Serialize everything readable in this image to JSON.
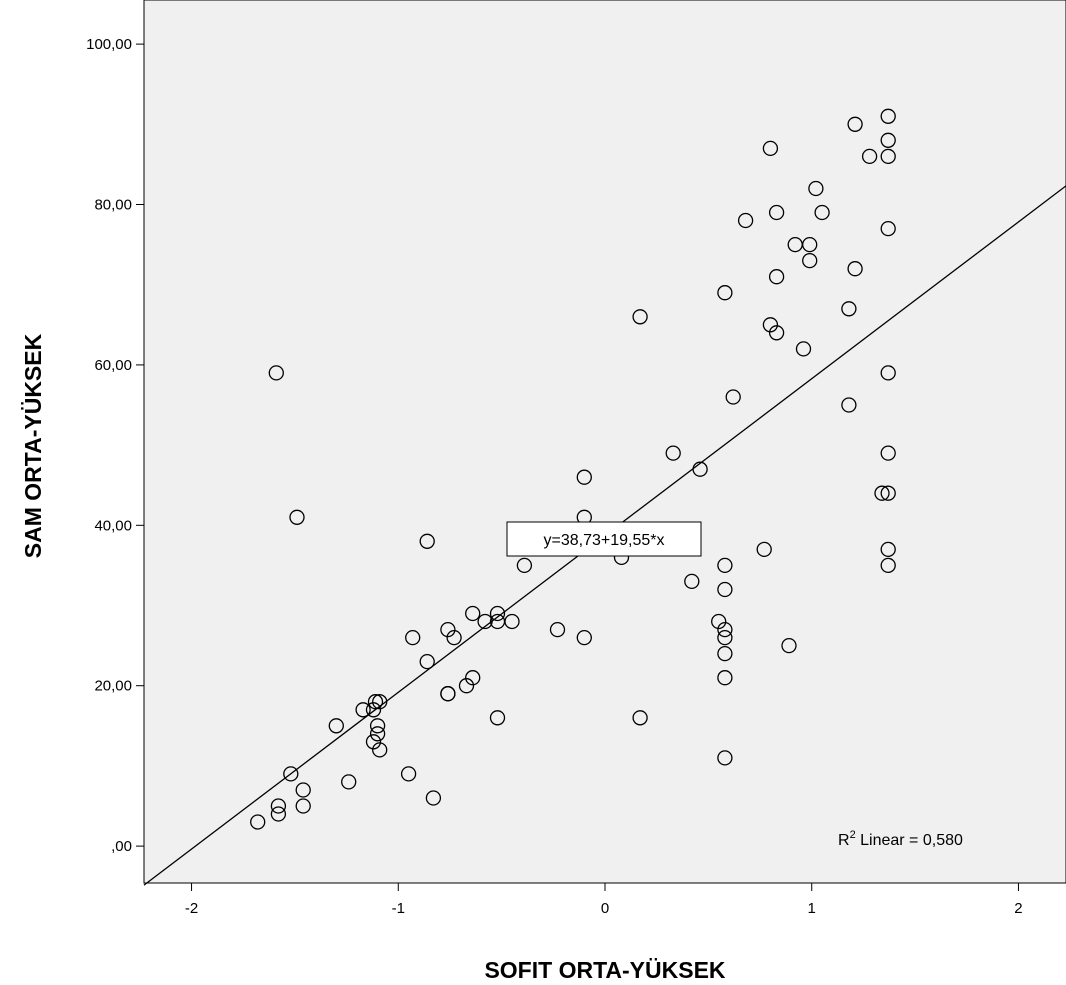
{
  "chart_data": {
    "type": "scatter",
    "xlabel": "SOFIT ORTA-YÜKSEK",
    "ylabel": "SAM ORTA-YÜKSEK",
    "xlim": [
      -2.23,
      2.23
    ],
    "ylim": [
      -4.6,
      105.5
    ],
    "x_ticks": [
      -2,
      -1,
      0,
      1,
      2
    ],
    "x_tick_labels": [
      "-2",
      "-1",
      "0",
      "1",
      "2"
    ],
    "y_ticks": [
      0,
      20,
      40,
      60,
      80,
      100
    ],
    "y_tick_labels": [
      ",00",
      "20,00",
      "40,00",
      "60,00",
      "80,00",
      "100,00"
    ],
    "fit_line": {
      "intercept": 38.73,
      "slope": 19.55,
      "label": "y=38,73+19,55*x"
    },
    "r2_label": {
      "prefix": "R",
      "superscript": "2",
      "suffix": " Linear = 0,580"
    },
    "colors": {
      "plot_bg": "#f0f0f0",
      "marker": "#000000",
      "line": "#000000"
    },
    "points": [
      {
        "x": -1.68,
        "y": 3
      },
      {
        "x": -1.58,
        "y": 5
      },
      {
        "x": -1.58,
        "y": 4
      },
      {
        "x": -1.52,
        "y": 9
      },
      {
        "x": -1.46,
        "y": 7
      },
      {
        "x": -1.46,
        "y": 5
      },
      {
        "x": -1.24,
        "y": 8
      },
      {
        "x": -1.3,
        "y": 15
      },
      {
        "x": -1.17,
        "y": 17
      },
      {
        "x": -1.11,
        "y": 18
      },
      {
        "x": -1.12,
        "y": 17
      },
      {
        "x": -1.09,
        "y": 18
      },
      {
        "x": -1.1,
        "y": 15
      },
      {
        "x": -1.1,
        "y": 14
      },
      {
        "x": -1.12,
        "y": 13
      },
      {
        "x": -1.09,
        "y": 12
      },
      {
        "x": -0.95,
        "y": 9
      },
      {
        "x": -0.83,
        "y": 6
      },
      {
        "x": -0.93,
        "y": 26
      },
      {
        "x": -0.86,
        "y": 23
      },
      {
        "x": -0.76,
        "y": 27
      },
      {
        "x": -0.73,
        "y": 26
      },
      {
        "x": -0.76,
        "y": 19
      },
      {
        "x": -0.76,
        "y": 19
      },
      {
        "x": -0.67,
        "y": 20
      },
      {
        "x": -0.64,
        "y": 21
      },
      {
        "x": -0.64,
        "y": 29
      },
      {
        "x": -0.58,
        "y": 28
      },
      {
        "x": -0.52,
        "y": 29
      },
      {
        "x": -0.52,
        "y": 28
      },
      {
        "x": -0.45,
        "y": 28
      },
      {
        "x": -0.52,
        "y": 16
      },
      {
        "x": -0.39,
        "y": 35
      },
      {
        "x": -0.23,
        "y": 27
      },
      {
        "x": -0.1,
        "y": 26
      },
      {
        "x": -0.1,
        "y": 46
      },
      {
        "x": -0.1,
        "y": 41
      },
      {
        "x": -0.86,
        "y": 38
      },
      {
        "x": -1.59,
        "y": 59
      },
      {
        "x": -1.49,
        "y": 41
      },
      {
        "x": 0.08,
        "y": 36
      },
      {
        "x": 0.17,
        "y": 16
      },
      {
        "x": 0.17,
        "y": 66
      },
      {
        "x": 0.33,
        "y": 49
      },
      {
        "x": 0.42,
        "y": 33
      },
      {
        "x": 0.46,
        "y": 47
      },
      {
        "x": 0.55,
        "y": 28
      },
      {
        "x": 0.58,
        "y": 27
      },
      {
        "x": 0.58,
        "y": 26
      },
      {
        "x": 0.58,
        "y": 24
      },
      {
        "x": 0.58,
        "y": 21
      },
      {
        "x": 0.58,
        "y": 11
      },
      {
        "x": 0.58,
        "y": 32
      },
      {
        "x": 0.58,
        "y": 35
      },
      {
        "x": 0.58,
        "y": 69
      },
      {
        "x": 0.62,
        "y": 56
      },
      {
        "x": 0.68,
        "y": 78
      },
      {
        "x": 0.77,
        "y": 37
      },
      {
        "x": 0.8,
        "y": 87
      },
      {
        "x": 0.8,
        "y": 65
      },
      {
        "x": 0.83,
        "y": 64
      },
      {
        "x": 0.83,
        "y": 71
      },
      {
        "x": 0.83,
        "y": 79
      },
      {
        "x": 0.89,
        "y": 25
      },
      {
        "x": 0.92,
        "y": 75
      },
      {
        "x": 0.96,
        "y": 62
      },
      {
        "x": 0.99,
        "y": 75
      },
      {
        "x": 0.99,
        "y": 73
      },
      {
        "x": 1.02,
        "y": 82
      },
      {
        "x": 1.05,
        "y": 79
      },
      {
        "x": 1.18,
        "y": 67
      },
      {
        "x": 1.18,
        "y": 55
      },
      {
        "x": 1.21,
        "y": 90
      },
      {
        "x": 1.21,
        "y": 72
      },
      {
        "x": 1.28,
        "y": 86
      },
      {
        "x": 1.34,
        "y": 44
      },
      {
        "x": 1.37,
        "y": 44
      },
      {
        "x": 1.37,
        "y": 91
      },
      {
        "x": 1.37,
        "y": 88
      },
      {
        "x": 1.37,
        "y": 86
      },
      {
        "x": 1.37,
        "y": 77
      },
      {
        "x": 1.37,
        "y": 59
      },
      {
        "x": 1.37,
        "y": 49
      },
      {
        "x": 1.37,
        "y": 37
      },
      {
        "x": 1.37,
        "y": 35
      }
    ]
  }
}
